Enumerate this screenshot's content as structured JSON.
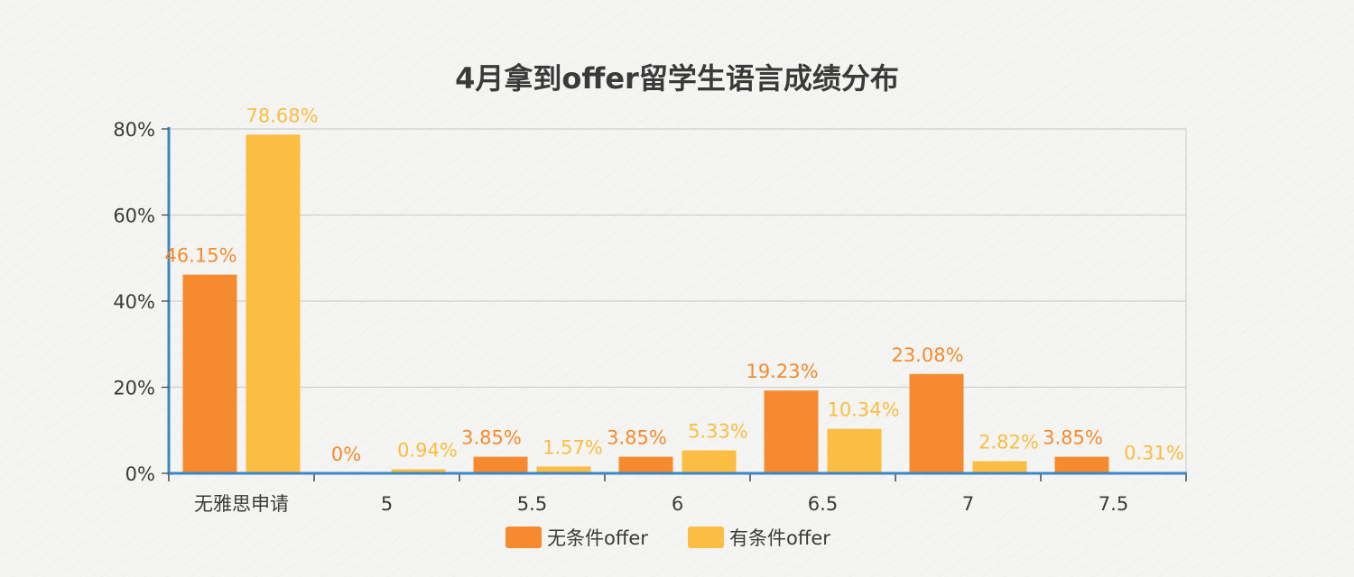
{
  "chart_data": {
    "type": "bar",
    "title": "4月拿到offer留学生语言成绩分布",
    "xlabel": "",
    "ylabel": "",
    "categories": [
      "无雅思申请",
      "5",
      "5.5",
      "6",
      "6.5",
      "7",
      "7.5"
    ],
    "ylim": [
      0,
      80
    ],
    "yticks": [
      "0%",
      "20%",
      "40%",
      "60%",
      "80%"
    ],
    "grid": true,
    "legend_position": "bottom",
    "series": [
      {
        "name": "无条件offer",
        "color": "#f58b2e",
        "values": [
          46.15,
          0,
          3.85,
          3.85,
          19.23,
          23.08,
          3.85
        ],
        "labels": [
          "46.15%",
          "0%",
          "3.85%",
          "3.85%",
          "19.23%",
          "23.08%",
          "3.85%"
        ]
      },
      {
        "name": "有条件offer",
        "color": "#fbbd42",
        "values": [
          78.68,
          0.94,
          1.57,
          5.33,
          10.34,
          2.82,
          0.31
        ],
        "labels": [
          "78.68%",
          "0.94%",
          "1.57%",
          "5.33%",
          "10.34%",
          "2.82%",
          "0.31%"
        ]
      }
    ]
  }
}
